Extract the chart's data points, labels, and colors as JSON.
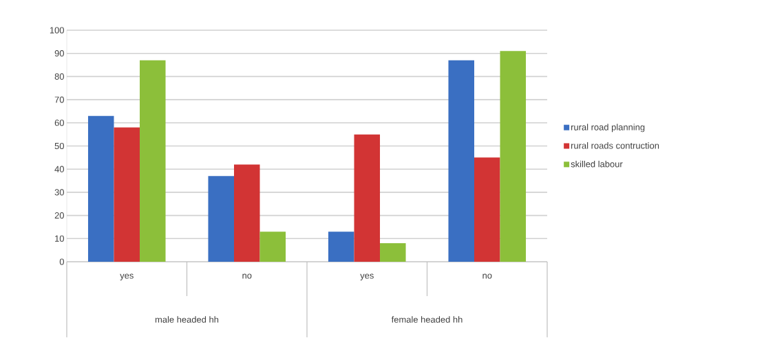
{
  "chart_data": {
    "type": "bar",
    "categories": [
      "yes",
      "no",
      "yes",
      "no"
    ],
    "series": [
      {
        "name": "rural road planning",
        "color": "#3a6fc2",
        "values": [
          63,
          37,
          13,
          87
        ]
      },
      {
        "name": "rural roads contruction",
        "color": "#d23434",
        "values": [
          58,
          42,
          55,
          45
        ]
      },
      {
        "name": "skilled labour",
        "color": "#8cbf3a",
        "values": [
          87,
          13,
          8,
          91
        ]
      }
    ],
    "ylim": [
      0,
      100
    ],
    "yticks": [
      0,
      10,
      20,
      30,
      40,
      50,
      60,
      70,
      80,
      90,
      100
    ],
    "grid": "y",
    "legend": "right",
    "annotations": [
      "male headed hh",
      "female headed hh"
    ]
  }
}
